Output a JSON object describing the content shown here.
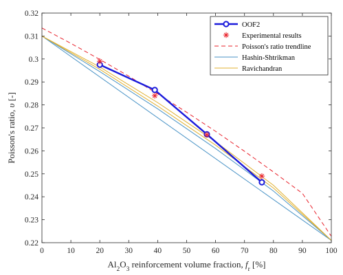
{
  "chart_data": {
    "type": "line",
    "xlabel": "Al₂O₃ reinforcement volume fraction, f_r [%]",
    "ylabel": "Poisson's ratio, υ [-]",
    "xlim": [
      0,
      100
    ],
    "ylim": [
      0.22,
      0.32
    ],
    "x_ticks": [
      "0",
      "10",
      "20",
      "30",
      "40",
      "50",
      "60",
      "70",
      "80",
      "90",
      "100"
    ],
    "y_ticks": [
      "0.22",
      "0.23",
      "0.24",
      "0.25",
      "0.26",
      "0.27",
      "0.28",
      "0.29",
      "0.3",
      "0.31",
      "0.32"
    ],
    "grid": false,
    "legend_position": "top-right",
    "series": [
      {
        "name": "OOF2",
        "style": "line-circle",
        "color": "#1a1adb",
        "x": [
          20,
          39,
          57,
          76
        ],
        "y": [
          0.2975,
          0.2865,
          0.2672,
          0.2463
        ]
      },
      {
        "name": "Experimental results",
        "style": "star",
        "color": "#e8202a",
        "x": [
          20,
          39,
          57,
          76
        ],
        "y": [
          0.299,
          0.284,
          0.267,
          0.249
        ]
      },
      {
        "name": "Poisson's ratio trendline",
        "style": "dashed",
        "color": "#e8202a",
        "x": [
          0,
          10,
          20,
          30,
          40,
          50,
          60,
          70,
          80,
          90,
          100
        ],
        "y": [
          0.3135,
          0.3068,
          0.2998,
          0.2925,
          0.2848,
          0.2768,
          0.2685,
          0.2598,
          0.2508,
          0.2415,
          0.2228
        ]
      },
      {
        "name": "Hashin-Shtrikman",
        "style": "line",
        "color": "#4a93c6",
        "x": [
          0,
          100
        ],
        "y": [
          0.31,
          0.221
        ]
      },
      {
        "name": "Hashin-Shtrikman",
        "style": "line",
        "color": "#4a93c6",
        "x": [
          0,
          20,
          40,
          60,
          80,
          100
        ],
        "y": [
          0.31,
          0.2945,
          0.2783,
          0.261,
          0.2425,
          0.221
        ]
      },
      {
        "name": "Ravichandran",
        "style": "line",
        "color": "#e0b030",
        "x": [
          0,
          20,
          40,
          60,
          80,
          100
        ],
        "y": [
          0.31,
          0.2965,
          0.281,
          0.264,
          0.245,
          0.221
        ]
      },
      {
        "name": "Ravichandran",
        "style": "line",
        "color": "#e0b030",
        "x": [
          0,
          20,
          40,
          60,
          80,
          100
        ],
        "y": [
          0.31,
          0.2955,
          0.2795,
          0.2625,
          0.2438,
          0.221
        ]
      }
    ],
    "legend": [
      {
        "label": "OOF2",
        "style": "line-circle",
        "color": "#1a1adb"
      },
      {
        "label": "Experimental results",
        "style": "star",
        "color": "#e8202a"
      },
      {
        "label": "Poisson's ratio trendline",
        "style": "dashed",
        "color": "#e8202a"
      },
      {
        "label": "Hashin-Shtrikman",
        "style": "line",
        "color": "#4a93c6"
      },
      {
        "label": "Ravichandran",
        "style": "line",
        "color": "#e0b030"
      }
    ]
  }
}
